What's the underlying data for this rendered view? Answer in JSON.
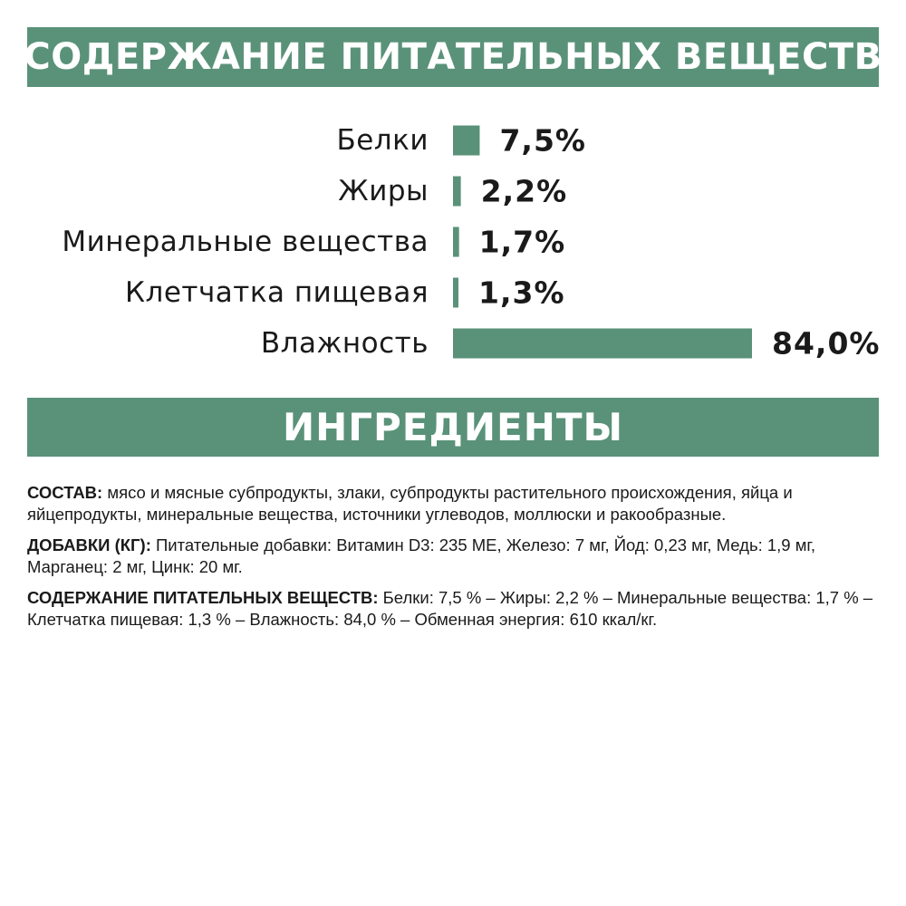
{
  "banners": {
    "nutrients": "СОДЕРЖАНИЕ ПИТАТЕЛЬНЫХ ВЕЩЕСТВ",
    "ingredients": "ИНГРЕДИЕНТЫ"
  },
  "colors": {
    "accent": "#5a9279",
    "text": "#1a1a1a",
    "background": "#ffffff"
  },
  "chart_data": {
    "type": "bar",
    "orientation": "horizontal",
    "categories": [
      "Белки",
      "Жиры",
      "Минеральные вещества",
      "Клетчатка пищевая",
      "Влажность"
    ],
    "values": [
      7.5,
      2.2,
      1.7,
      1.3,
      84.0
    ],
    "value_labels": [
      "7,5%",
      "2,2%",
      "1,7%",
      "1,3%",
      "84,0%"
    ],
    "title": "СОДЕРЖАНИЕ ПИТАТЕЛЬНЫХ ВЕЩЕСТВ",
    "xlabel": "",
    "ylabel": "",
    "grid": false
  },
  "ingredients": {
    "composition_key": "СОСТАВ:",
    "composition_text": " мясо и мясные субпродукты, злаки, субпродукты растительного происхождения, яйца и яйцепродукты, минеральные вещества, источники углеводов, моллюски и ракообразные.",
    "additives_key": "ДОБАВКИ (КГ):",
    "additives_text": " Питательные добавки: Витамин D3: 235 МЕ, Железо: 7 мг, Йод: 0,23 мг, Медь: 1,9 мг, Марганец: 2 мг, Цинк: 20 мг.",
    "nutrients_key": "СОДЕРЖАНИЕ ПИТАТЕЛЬНЫХ ВЕЩЕСТВ:",
    "nutrients_text": " Белки: 7,5 % – Жиры: 2,2 % – Минеральные вещества: 1,7 % – Клетчатка пищевая: 1,3 % – Влажность: 84,0 % – Обменная энергия: 610 ккал/кг."
  }
}
